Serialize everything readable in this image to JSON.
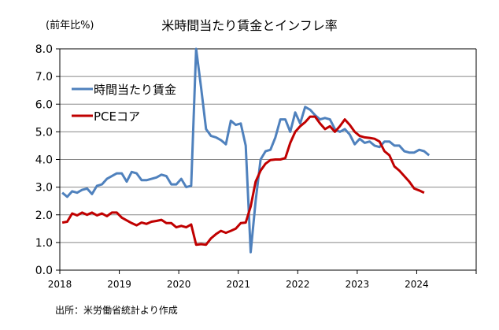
{
  "chart_data": {
    "type": "line",
    "title": "米時間当たり賃金とインフレ率",
    "ylabel": "(前年比%)",
    "xlabel": "",
    "source": "出所：米労働省統計より作成",
    "ylim": [
      0,
      8
    ],
    "xlim": [
      2018,
      2025
    ],
    "yticks": [
      "0.0",
      "1.0",
      "2.0",
      "3.0",
      "4.0",
      "5.0",
      "6.0",
      "7.0",
      "8.0"
    ],
    "xticks": [
      "2018",
      "2019",
      "2020",
      "2021",
      "2022",
      "2023",
      "2024"
    ],
    "grid": true,
    "legend_position": "top-left",
    "frequency": "monthly, starting 2018-01",
    "series": [
      {
        "name": "時間当たり賃金",
        "color": "#4F81BD",
        "values": [
          2.8,
          2.65,
          2.85,
          2.8,
          2.9,
          2.95,
          2.75,
          3.05,
          3.1,
          3.3,
          3.4,
          3.5,
          3.5,
          3.2,
          3.55,
          3.5,
          3.25,
          3.25,
          3.3,
          3.35,
          3.45,
          3.4,
          3.1,
          3.1,
          3.3,
          3.0,
          3.05,
          8.0,
          6.6,
          5.1,
          4.85,
          4.8,
          4.7,
          4.55,
          5.4,
          5.25,
          5.3,
          4.5,
          0.65,
          2.5,
          4.0,
          4.3,
          4.35,
          4.8,
          5.45,
          5.45,
          5.0,
          5.7,
          5.3,
          5.9,
          5.8,
          5.6,
          5.45,
          5.5,
          5.45,
          5.1,
          5.0,
          5.1,
          4.9,
          4.55,
          4.75,
          4.6,
          4.65,
          4.5,
          4.45,
          4.65,
          4.65,
          4.5,
          4.5,
          4.3,
          4.25,
          4.25,
          4.35,
          4.3,
          4.15
        ]
      },
      {
        "name": "PCEコア",
        "color": "#C00000",
        "values": [
          1.72,
          1.75,
          2.05,
          1.98,
          2.08,
          2.0,
          2.08,
          1.98,
          2.05,
          1.95,
          2.08,
          2.08,
          1.9,
          1.8,
          1.7,
          1.62,
          1.72,
          1.67,
          1.75,
          1.78,
          1.82,
          1.7,
          1.7,
          1.55,
          1.6,
          1.55,
          1.65,
          0.92,
          0.94,
          0.92,
          1.15,
          1.3,
          1.42,
          1.35,
          1.42,
          1.5,
          1.7,
          1.72,
          2.3,
          3.2,
          3.6,
          3.85,
          3.98,
          4.0,
          4.0,
          4.05,
          4.6,
          5.0,
          5.2,
          5.35,
          5.55,
          5.55,
          5.3,
          5.1,
          5.2,
          5.0,
          5.2,
          5.45,
          5.25,
          5.0,
          4.85,
          4.8,
          4.78,
          4.75,
          4.65,
          4.3,
          4.15,
          3.75,
          3.6,
          3.4,
          3.2,
          2.95,
          2.88,
          2.8
        ]
      }
    ]
  }
}
